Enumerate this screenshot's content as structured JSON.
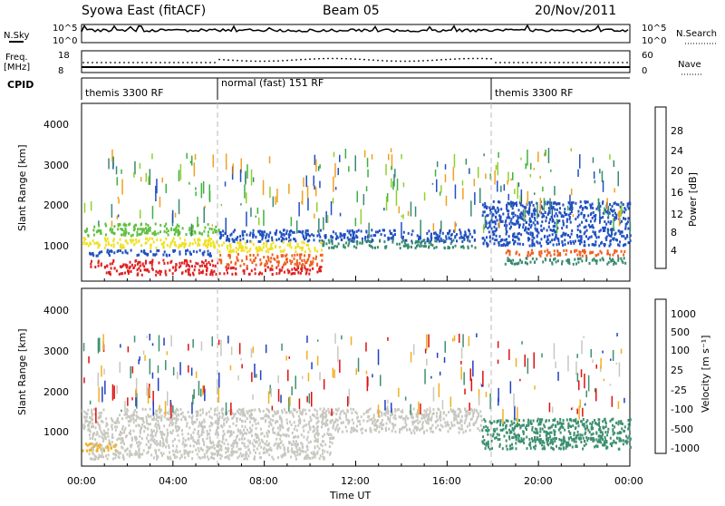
{
  "header": {
    "title_left": "Syowa East (fitACF)",
    "title_center": "Beam 05",
    "date": "20/Nov/2011"
  },
  "aux_panels": {
    "nsky_label": "N.Sky",
    "nsky_ticks": [
      "10^5",
      "10^0"
    ],
    "nsearch_label": "N.Search",
    "freq_label": "Freq.",
    "freq_unit": "[MHz]",
    "freq_ticks": [
      "18",
      "8"
    ],
    "nave_ticks": [
      "60",
      "0"
    ],
    "nave_label": "Nave",
    "cpid_label": "CPID"
  },
  "cpid_segments": [
    {
      "label": "themis 3300 RF",
      "start_hour": 0,
      "end_hour": 6
    },
    {
      "label": "normal (fast) 151 RF",
      "start_hour": 6,
      "end_hour": 18
    },
    {
      "label": "themis 3300 RF",
      "start_hour": 18,
      "end_hour": 24
    }
  ],
  "axes": {
    "ylabel": "Slant Range [km]",
    "yticks": [
      "1000",
      "2000",
      "3000",
      "4000"
    ],
    "xticks": [
      "00:00",
      "04:00",
      "08:00",
      "12:00",
      "16:00",
      "20:00",
      "00:00"
    ],
    "xlabel": "Time UT"
  },
  "colorbars": {
    "power": {
      "label": "Power [dB]",
      "ticks": [
        "4",
        "8",
        "12",
        "16",
        "20",
        "24",
        "28"
      ],
      "colors": [
        "#1020f0",
        "#2050c0",
        "#3a8a70",
        "#40b040",
        "#90d030",
        "#f0e020",
        "#f0a020",
        "#f06020",
        "#e02020"
      ]
    },
    "velocity": {
      "label": "Velocity [m s⁻¹]",
      "ticks": [
        "1000",
        "500",
        "100",
        "25",
        "-25",
        "-100",
        "-500",
        "-1000"
      ],
      "colors": [
        "#2040c0",
        "#2e6aa0",
        "#3e9070",
        "#60c040",
        "#c8c8c0",
        "#f0b020",
        "#f08020",
        "#f04020",
        "#e01010"
      ]
    }
  },
  "chart_data": [
    {
      "type": "heatmap",
      "name": "Power",
      "x_range": [
        0,
        24
      ],
      "ylim": [
        200,
        4600
      ],
      "x_unit": "hours UT",
      "y_unit": "km",
      "scatter_bands": [
        {
          "start_hour": 0.0,
          "end_hour": 6.0,
          "range_km": [
            1350,
            1650
          ],
          "color": "#60c040"
        },
        {
          "start_hour": 0.0,
          "end_hour": 6.0,
          "range_km": [
            1050,
            1300
          ],
          "color": "#f0e020"
        },
        {
          "start_hour": 0.3,
          "end_hour": 5.8,
          "range_km": [
            850,
            1000
          ],
          "color": "#2050c0"
        },
        {
          "start_hour": 0.3,
          "end_hour": 6.0,
          "range_km": [
            550,
            750
          ],
          "color": "#e02020"
        },
        {
          "start_hour": 1.0,
          "end_hour": 6.0,
          "range_km": [
            380,
            520
          ],
          "color": "#e02020"
        },
        {
          "start_hour": 6.0,
          "end_hour": 10.5,
          "range_km": [
            600,
            900
          ],
          "color": "#f06020"
        },
        {
          "start_hour": 6.0,
          "end_hour": 10.5,
          "range_km": [
            400,
            580
          ],
          "color": "#e02020"
        },
        {
          "start_hour": 6.0,
          "end_hour": 17.2,
          "range_km": [
            1200,
            1500
          ],
          "color": "#2050c0"
        },
        {
          "start_hour": 6.0,
          "end_hour": 10.5,
          "range_km": [
            950,
            1200
          ],
          "color": "#f0e020"
        },
        {
          "start_hour": 10.5,
          "end_hour": 17.2,
          "range_km": [
            1050,
            1250
          ],
          "color": "#3a8a70"
        },
        {
          "start_hour": 18.5,
          "end_hour": 24.0,
          "range_km": [
            850,
            1000
          ],
          "color": "#f06020"
        },
        {
          "start_hour": 18.5,
          "end_hour": 24.0,
          "range_km": [
            650,
            800
          ],
          "color": "#3a8a70"
        },
        {
          "start_hour": 17.5,
          "end_hour": 24.0,
          "range_km": [
            1100,
            2200
          ],
          "color": "#2050c0"
        }
      ]
    },
    {
      "type": "heatmap",
      "name": "Velocity",
      "x_range": [
        0,
        24
      ],
      "ylim": [
        200,
        4600
      ],
      "x_unit": "hours UT",
      "y_unit": "km",
      "scatter_bands": [
        {
          "start_hour": 0.0,
          "end_hour": 17.5,
          "range_km": [
            1050,
            1650
          ],
          "color": "#c8c8c0"
        },
        {
          "start_hour": 0.3,
          "end_hour": 11.0,
          "range_km": [
            400,
            1050
          ],
          "color": "#c8c8c0"
        },
        {
          "start_hour": 0.0,
          "end_hour": 1.5,
          "range_km": [
            600,
            800
          ],
          "color": "#f0b020"
        },
        {
          "start_hour": 17.5,
          "end_hour": 24.0,
          "range_km": [
            650,
            1400
          ],
          "color": "#3e9070"
        },
        {
          "start_hour": 18.5,
          "end_hour": 24.0,
          "range_km": [
            800,
            950
          ],
          "color": "#3e9070"
        }
      ]
    }
  ]
}
